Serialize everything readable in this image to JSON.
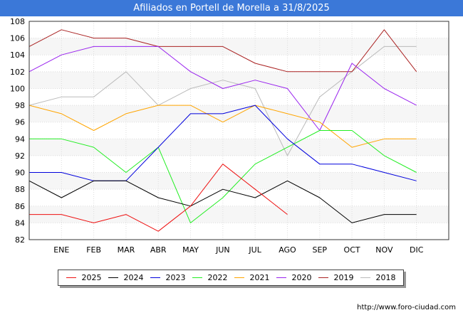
{
  "title": "Afiliados en Portell de Morella a 31/8/2025",
  "footer_url": "http://www.foro-ciudad.com",
  "chart_data": {
    "type": "line",
    "categories": [
      "",
      "ENE",
      "FEB",
      "MAR",
      "ABR",
      "MAY",
      "JUN",
      "JUL",
      "AGO",
      "SEP",
      "OCT",
      "NOV",
      "DIC"
    ],
    "y_ticks": [
      "82",
      "84",
      "86",
      "88",
      "90",
      "92",
      "94",
      "96",
      "98",
      "100",
      "102",
      "104",
      "106",
      "108"
    ],
    "ylim": [
      82,
      108
    ],
    "grid": true,
    "legend_position": "bottom",
    "series": [
      {
        "name": "2025",
        "color": "#ee1111",
        "values": [
          85,
          85,
          84,
          85,
          83,
          86,
          91,
          88,
          85,
          null,
          null,
          null,
          null
        ]
      },
      {
        "name": "2024",
        "color": "#000000",
        "values": [
          89,
          87,
          89,
          89,
          87,
          86,
          88,
          87,
          89,
          87,
          84,
          85,
          85
        ]
      },
      {
        "name": "2023",
        "color": "#0000dd",
        "values": [
          90,
          90,
          89,
          89,
          93,
          97,
          97,
          98,
          94,
          91,
          91,
          90,
          89
        ]
      },
      {
        "name": "2022",
        "color": "#22ee22",
        "values": [
          94,
          94,
          93,
          90,
          93,
          84,
          87,
          91,
          93,
          95,
          95,
          92,
          90
        ]
      },
      {
        "name": "2021",
        "color": "#ffa500",
        "values": [
          98,
          97,
          95,
          97,
          98,
          98,
          96,
          98,
          97,
          96,
          93,
          94,
          94
        ]
      },
      {
        "name": "2020",
        "color": "#9922ee",
        "values": [
          102,
          104,
          105,
          105,
          105,
          102,
          100,
          101,
          100,
          95,
          103,
          100,
          98
        ]
      },
      {
        "name": "2019",
        "color": "#aa2222",
        "values": [
          105,
          107,
          106,
          106,
          105,
          105,
          105,
          103,
          102,
          102,
          102,
          107,
          102
        ]
      },
      {
        "name": "2018",
        "color": "#bbbbbb",
        "values": [
          98,
          99,
          99,
          102,
          98,
          100,
          101,
          100,
          92,
          99,
          102,
          105,
          105
        ]
      }
    ]
  }
}
